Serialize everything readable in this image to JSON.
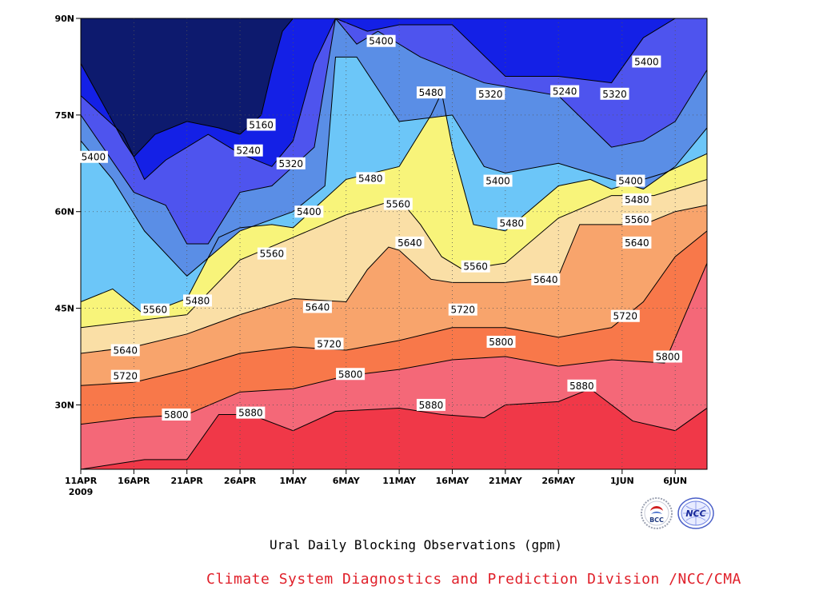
{
  "header": {
    "title": "Ural Daily Blocking Observations (gpm)"
  },
  "footer": {
    "credit": "Climate System Diagnostics and Prediction Division /NCC/CMA"
  },
  "logos": {
    "bcc_text": "BCC",
    "ncc_text": "NCC"
  },
  "chart_data": {
    "type": "heatmap",
    "subtype": "filled-contour",
    "title": "Ural Daily Blocking Observations (gpm)",
    "xlabel": "",
    "ylabel": "",
    "x_axis": {
      "start": "11APR2009",
      "end": "09JUN2009",
      "range_days": [
        0,
        59
      ],
      "ticks": [
        {
          "day": 0,
          "label": "11APR",
          "sub": "2009"
        },
        {
          "day": 5,
          "label": "16APR"
        },
        {
          "day": 10,
          "label": "21APR"
        },
        {
          "day": 15,
          "label": "26APR"
        },
        {
          "day": 20,
          "label": "1MAY"
        },
        {
          "day": 25,
          "label": "6MAY"
        },
        {
          "day": 30,
          "label": "11MAY"
        },
        {
          "day": 35,
          "label": "16MAY"
        },
        {
          "day": 40,
          "label": "21MAY"
        },
        {
          "day": 45,
          "label": "26MAY"
        },
        {
          "day": 51,
          "label": "1JUN"
        },
        {
          "day": 56,
          "label": "6JUN"
        }
      ]
    },
    "y_axis": {
      "range": [
        20,
        90
      ],
      "ticks": [
        {
          "value": 30,
          "label": "30N"
        },
        {
          "value": 45,
          "label": "45N"
        },
        {
          "value": 60,
          "label": "60N"
        },
        {
          "value": 75,
          "label": "75N"
        },
        {
          "value": 90,
          "label": "90N"
        }
      ]
    },
    "grid": true,
    "contour_levels": [
      5160,
      5240,
      5320,
      5400,
      5480,
      5560,
      5640,
      5720,
      5800,
      5880
    ],
    "band_colors": [
      "#0d1a6e",
      "#1420e6",
      "#4e54ee",
      "#5a8ee6",
      "#6cc6f8",
      "#f8f47a",
      "#fadfa6",
      "#f8a46c",
      "#f8784a",
      "#f46878",
      "#f03848"
    ],
    "contours": [
      {
        "level": 5880,
        "x": [
          0,
          6,
          10,
          13,
          16,
          20,
          24,
          30,
          34,
          38,
          40,
          45,
          48,
          52,
          56,
          59
        ],
        "y": [
          20,
          21.5,
          21.5,
          28.5,
          28.5,
          26,
          29,
          29.5,
          28.5,
          28,
          30,
          30.5,
          32.5,
          27.5,
          26,
          29.5
        ]
      },
      {
        "level": 5800,
        "x": [
          0,
          5,
          10,
          15,
          20,
          25,
          30,
          35,
          40,
          45,
          50,
          55,
          59
        ],
        "y": [
          27,
          28,
          28.5,
          32,
          32.5,
          34.5,
          35.5,
          37,
          37.5,
          36,
          37,
          36.5,
          52
        ]
      },
      {
        "level": 5720,
        "x": [
          0,
          5,
          10,
          15,
          20,
          25,
          30,
          35,
          40,
          45,
          50,
          53,
          56,
          59
        ],
        "y": [
          33,
          33.5,
          35.5,
          38,
          39,
          38.5,
          40,
          42,
          42,
          40.5,
          42,
          46,
          53,
          57
        ]
      },
      {
        "level": 5640,
        "x": [
          0,
          5,
          10,
          15,
          20,
          25,
          27,
          29,
          30,
          33,
          35,
          40,
          45,
          47,
          50,
          53,
          56,
          59
        ],
        "y": [
          38,
          39,
          41,
          44,
          46.5,
          46,
          51,
          54.5,
          54,
          49.5,
          49,
          49,
          50,
          58,
          58,
          58,
          60,
          61
        ]
      },
      {
        "level": 5560,
        "x": [
          0,
          5,
          10,
          15,
          20,
          25,
          29,
          30,
          32,
          34,
          36,
          40,
          45,
          50,
          54,
          57,
          59
        ],
        "y": [
          42,
          43,
          44,
          52.5,
          56,
          59.5,
          61.5,
          62,
          58,
          53,
          51,
          52,
          59,
          62.5,
          62.5,
          64,
          65
        ]
      },
      {
        "level": 5480,
        "x": [
          0,
          3,
          6,
          10,
          13,
          15,
          18,
          20,
          25,
          30,
          33,
          34,
          35,
          37,
          40,
          45,
          48,
          50,
          55,
          59
        ],
        "y": [
          46,
          48,
          44,
          46.5,
          56,
          57.5,
          58,
          57.5,
          65,
          67,
          75,
          78.5,
          70,
          58,
          57,
          64,
          65,
          63.5,
          66,
          69
        ]
      },
      {
        "level": 5400,
        "x": [
          0,
          3,
          6,
          10,
          15,
          20,
          23,
          24,
          26,
          30,
          35,
          38,
          40,
          45,
          50,
          53,
          56,
          59
        ],
        "y": [
          71,
          65,
          57,
          50,
          57,
          60,
          64,
          84,
          84,
          74,
          75,
          67,
          66,
          67.5,
          65,
          63.5,
          67,
          73
        ]
      },
      {
        "level": 5320,
        "x": [
          0,
          5,
          8,
          10,
          12,
          15,
          18,
          20,
          22,
          24,
          26,
          28,
          32,
          38,
          45,
          50,
          53,
          56,
          59
        ],
        "y": [
          75,
          63,
          61,
          55,
          55,
          63,
          64,
          67,
          70,
          90,
          86,
          88,
          84,
          80,
          78,
          70,
          71,
          74,
          82
        ]
      },
      {
        "level": 5240,
        "x": [
          0,
          4,
          6,
          8,
          10,
          12,
          15,
          18,
          20,
          22,
          24,
          27,
          30,
          35,
          40,
          45,
          50,
          53,
          56,
          59
        ],
        "y": [
          78,
          72,
          65,
          68,
          70,
          72,
          69,
          67,
          71,
          83,
          90,
          88,
          89,
          89,
          81,
          81,
          80,
          87,
          90,
          90
        ],
        "note": ""
      },
      {
        "level": 5160,
        "x": [
          0,
          4,
          5,
          7,
          10,
          13,
          15,
          17,
          18,
          19,
          20
        ],
        "y": [
          83,
          71,
          68.5,
          72,
          74,
          73,
          72,
          75,
          82,
          88,
          90
        ]
      }
    ],
    "contour_labels": [
      {
        "text": "5160",
        "x": 17,
        "y": 73.5
      },
      {
        "text": "5240",
        "x": 15.8,
        "y": 69.5
      },
      {
        "text": "5320",
        "x": 19.8,
        "y": 67.5
      },
      {
        "text": "5400",
        "x": 1.2,
        "y": 68.5
      },
      {
        "text": "5400",
        "x": 21.5,
        "y": 60
      },
      {
        "text": "5400",
        "x": 28.3,
        "y": 86.5
      },
      {
        "text": "5480",
        "x": 33,
        "y": 78.5
      },
      {
        "text": "5320",
        "x": 38.6,
        "y": 78.3
      },
      {
        "text": "5240",
        "x": 45.6,
        "y": 78.7
      },
      {
        "text": "5320",
        "x": 50.3,
        "y": 78.3
      },
      {
        "text": "5400",
        "x": 53.3,
        "y": 83.3
      },
      {
        "text": "5480",
        "x": 27.3,
        "y": 65.2
      },
      {
        "text": "5560",
        "x": 29.9,
        "y": 61.2
      },
      {
        "text": "5400",
        "x": 39.3,
        "y": 64.8
      },
      {
        "text": "5480",
        "x": 40.6,
        "y": 58.2
      },
      {
        "text": "5400",
        "x": 51.8,
        "y": 64.8
      },
      {
        "text": "5480",
        "x": 52.4,
        "y": 61.9
      },
      {
        "text": "5560",
        "x": 52.4,
        "y": 58.8
      },
      {
        "text": "5640",
        "x": 31,
        "y": 55.2
      },
      {
        "text": "5560",
        "x": 18,
        "y": 53.5
      },
      {
        "text": "5640",
        "x": 52.4,
        "y": 55.2
      },
      {
        "text": "5560",
        "x": 37.2,
        "y": 51.5
      },
      {
        "text": "5640",
        "x": 43.8,
        "y": 49.5
      },
      {
        "text": "5480",
        "x": 11,
        "y": 46.2
      },
      {
        "text": "5560",
        "x": 7,
        "y": 44.8
      },
      {
        "text": "5640",
        "x": 22.3,
        "y": 45.2
      },
      {
        "text": "5720",
        "x": 36,
        "y": 44.8
      },
      {
        "text": "5720",
        "x": 51.3,
        "y": 43.8
      },
      {
        "text": "5640",
        "x": 4.2,
        "y": 38.5
      },
      {
        "text": "5720",
        "x": 23.4,
        "y": 39.5
      },
      {
        "text": "5800",
        "x": 39.6,
        "y": 39.8
      },
      {
        "text": "5800",
        "x": 55.3,
        "y": 37.5
      },
      {
        "text": "5720",
        "x": 4.2,
        "y": 34.5
      },
      {
        "text": "5800",
        "x": 25.4,
        "y": 34.8
      },
      {
        "text": "5880",
        "x": 47.2,
        "y": 33
      },
      {
        "text": "5800",
        "x": 9,
        "y": 28.5
      },
      {
        "text": "5880",
        "x": 16,
        "y": 28.8
      },
      {
        "text": "5880",
        "x": 33,
        "y": 30
      }
    ]
  }
}
